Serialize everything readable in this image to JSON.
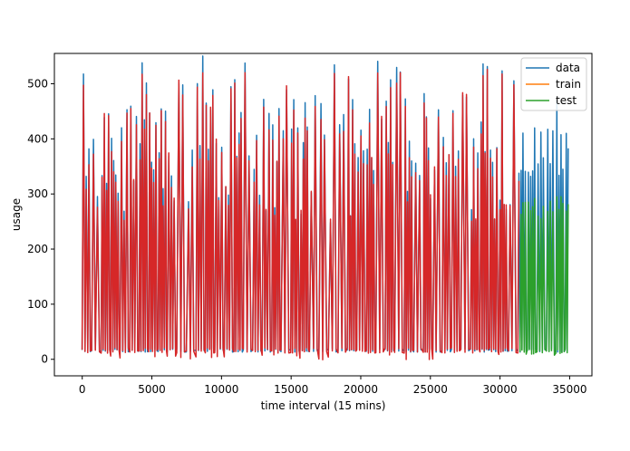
{
  "chart_data": {
    "type": "line",
    "title": "",
    "xlabel": "time interval (15 mins)",
    "ylabel": "usage",
    "xlim": [
      -2000,
      36600
    ],
    "ylim": [
      -30,
      555
    ],
    "xticks": [
      0,
      5000,
      10000,
      15000,
      20000,
      25000,
      30000,
      35000
    ],
    "yticks": [
      0,
      100,
      200,
      300,
      400,
      500
    ],
    "grid": false,
    "legend_position": "upper right",
    "series": [
      {
        "name": "data",
        "color": "#1f77b4",
        "x_range": [
          0,
          34900
        ],
        "baseline": 15,
        "description_points": [
          {
            "x": 32500,
            "y": 420
          },
          {
            "x": 33300,
            "y": 410
          },
          {
            "x": 34100,
            "y": 470
          },
          {
            "x": 34700,
            "y": 410
          }
        ]
      },
      {
        "name": "train",
        "color": "#ff7f0e",
        "x_range": [
          0,
          31400
        ]
      },
      {
        "name": "test",
        "color": "#2ca02c",
        "x_range": [
          31400,
          34900
        ],
        "baseline": 15,
        "peak_range": [
          255,
          300
        ]
      },
      {
        "name": "",
        "color": "#d62728",
        "x_range": [
          0,
          31400
        ],
        "baseline": 15,
        "peak_range": [
          250,
          530
        ]
      }
    ],
    "legend": [
      "data",
      "train",
      "test"
    ]
  }
}
